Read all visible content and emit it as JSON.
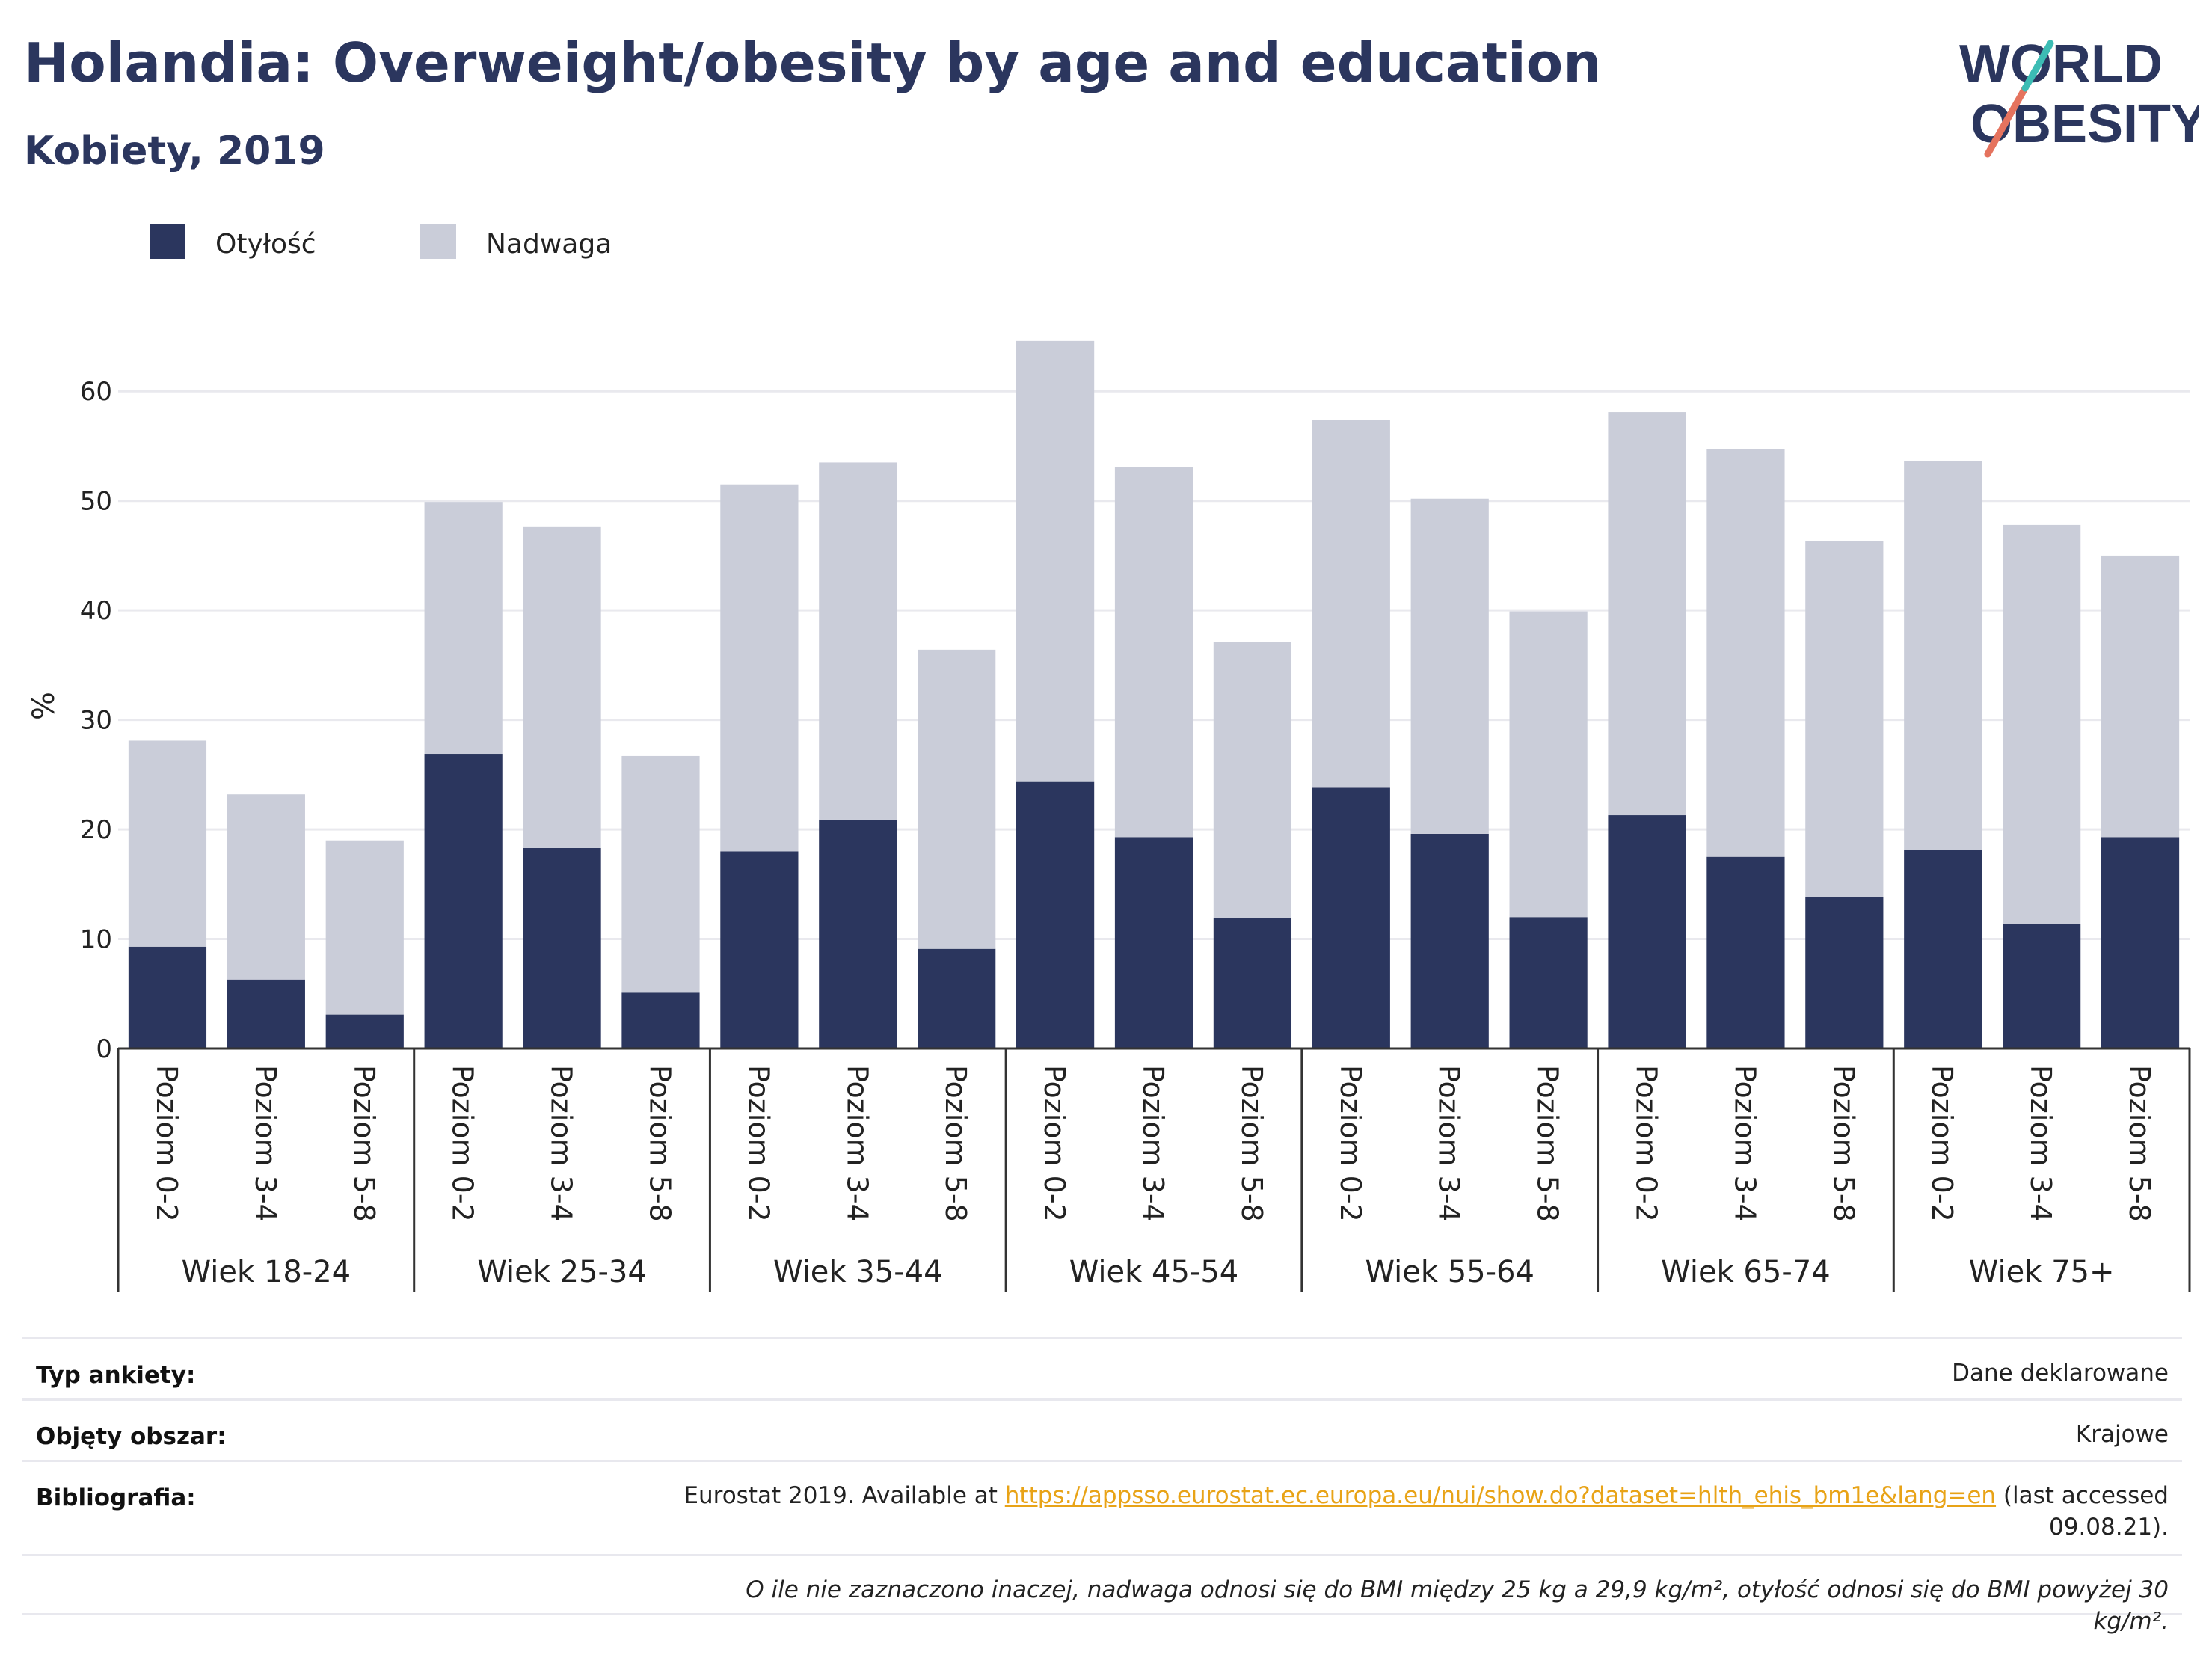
{
  "title": "Holandia: Overweight/obesity by age and education",
  "subtitle": "Kobiety, 2019",
  "logo": {
    "line1": "WORLD",
    "line2": "OBESITY",
    "colors": [
      "#2b365e",
      "#e5735e",
      "#3cbcb4"
    ]
  },
  "chart_data": {
    "type": "bar",
    "stacked": true,
    "ylabel": "%",
    "ylim": [
      0,
      65
    ],
    "yticks": [
      0,
      10,
      20,
      30,
      40,
      50,
      60
    ],
    "grid": true,
    "legend_position": "top-left",
    "groups": [
      "Wiek 18-24",
      "Wiek 25-34",
      "Wiek 35-44",
      "Wiek 45-54",
      "Wiek 55-64",
      "Wiek 65-74",
      "Wiek 75+"
    ],
    "subcategories": [
      "Poziom 0-2",
      "Poziom 3-4",
      "Poziom 5-8"
    ],
    "series": [
      {
        "name": "Otyłość",
        "color": "#2b365e",
        "values": [
          9.3,
          6.3,
          3.1,
          26.9,
          18.3,
          5.1,
          18.0,
          20.9,
          9.1,
          24.4,
          19.3,
          11.9,
          23.8,
          19.6,
          12.0,
          21.3,
          17.5,
          13.8,
          18.1,
          11.4,
          19.3
        ]
      },
      {
        "name": "Nadwaga",
        "color": "#cacdd9",
        "values": [
          18.8,
          16.9,
          15.9,
          23.0,
          29.3,
          21.6,
          33.5,
          32.6,
          27.3,
          40.2,
          33.8,
          25.2,
          33.6,
          30.6,
          27.9,
          36.8,
          37.2,
          32.5,
          35.5,
          36.4,
          25.7
        ]
      }
    ]
  },
  "info": {
    "survey_type_label": "Typ ankiety:",
    "survey_type_value": "Dane deklarowane",
    "coverage_label": "Objęty obszar:",
    "coverage_value": "Krajowe",
    "bibliography_label": "Bibliografia:",
    "bibliography_prefix": "Eurostat 2019. Available at ",
    "bibliography_link": "https://appsso.eurostat.ec.europa.eu/nui/show.do?dataset=hlth_ehis_bm1e&lang=en",
    "bibliography_suffix": " (last accessed 09.08.21).",
    "note": "O ile nie zaznaczono inaczej, nadwaga odnosi się do BMI między 25 kg a 29,9 kg/m², otyłość odnosi się do BMI powyżej 30 kg/m²."
  }
}
